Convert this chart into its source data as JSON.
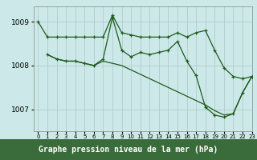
{
  "xlabel": "Graphe pression niveau de la mer (hPa)",
  "background_color": "#cce8e8",
  "plot_bg_color": "#cce8e8",
  "xlabel_bg": "#4a7a4a",
  "grid_color": "#b0cccc",
  "line_color": "#1e5c1e",
  "text_color": "#000000",
  "xlabel_text_color": "#000000",
  "ylim": [
    1006.5,
    1009.35
  ],
  "xlim": [
    -0.5,
    23
  ],
  "yticks": [
    1007,
    1008,
    1009
  ],
  "xticks": [
    0,
    1,
    2,
    3,
    4,
    5,
    6,
    7,
    8,
    9,
    10,
    11,
    12,
    13,
    14,
    15,
    16,
    17,
    18,
    19,
    20,
    21,
    22,
    23
  ],
  "line1_x": [
    0,
    1,
    2,
    3,
    4,
    5,
    6,
    7,
    8,
    9,
    10,
    11,
    12,
    13,
    14,
    15,
    16,
    17,
    18,
    19,
    20,
    21,
    22,
    23
  ],
  "line1_y": [
    1009.0,
    1008.65,
    1008.65,
    1008.65,
    1008.65,
    1008.65,
    1008.65,
    1008.65,
    1009.15,
    1008.75,
    1008.7,
    1008.65,
    1008.65,
    1008.65,
    1008.65,
    1008.75,
    1008.65,
    1008.75,
    1008.8,
    1008.35,
    1007.95,
    1007.75,
    1007.7,
    1007.75
  ],
  "line2_x": [
    1,
    2,
    3,
    4,
    5,
    6,
    7,
    8,
    9,
    10,
    11,
    12,
    13,
    14,
    15,
    16,
    17,
    18,
    19,
    20,
    21,
    22,
    23
  ],
  "line2_y": [
    1008.25,
    1008.15,
    1008.1,
    1008.1,
    1008.05,
    1008.0,
    1008.15,
    1009.1,
    1008.35,
    1008.2,
    1008.3,
    1008.25,
    1008.3,
    1008.35,
    1008.55,
    1008.1,
    1007.77,
    1007.05,
    1006.87,
    1006.82,
    1006.9,
    1007.38,
    1007.75
  ],
  "line3_x": [
    1,
    2,
    3,
    4,
    5,
    6,
    7,
    8,
    9,
    10,
    11,
    12,
    13,
    14,
    15,
    16,
    17,
    18,
    19,
    20,
    21,
    22,
    23
  ],
  "line3_y": [
    1008.25,
    1008.15,
    1008.1,
    1008.1,
    1008.05,
    1008.0,
    1008.1,
    1008.05,
    1008.0,
    1007.9,
    1007.8,
    1007.7,
    1007.6,
    1007.5,
    1007.4,
    1007.3,
    1007.2,
    1007.1,
    1006.97,
    1006.87,
    1006.9,
    1007.38,
    1007.75
  ]
}
